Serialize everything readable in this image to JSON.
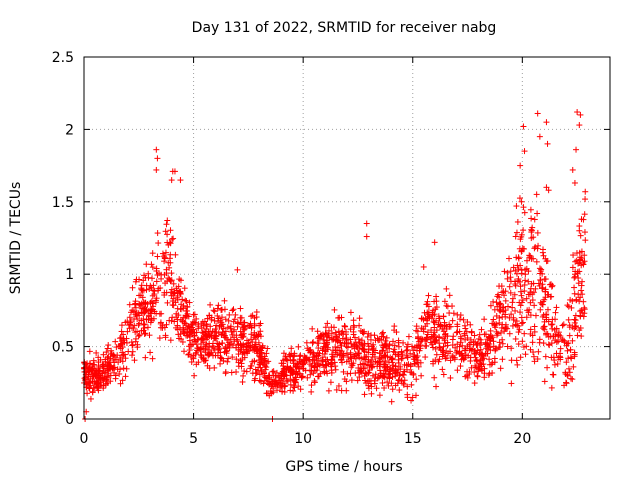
{
  "chart_data": {
    "type": "scatter",
    "title": "Day 131 of 2022, SRMTID for receiver nabg",
    "xlabel": "GPS time / hours",
    "ylabel": "SRMTID / TECUs",
    "xlim": [
      0,
      24
    ],
    "ylim": [
      0,
      2.5
    ],
    "xticks": [
      0,
      5,
      10,
      15,
      20
    ],
    "xtick_labels": [
      "0",
      "5",
      "10",
      "15",
      "20"
    ],
    "yticks": [
      0,
      0.5,
      1,
      1.5,
      2,
      2.5
    ],
    "ytick_labels": [
      "0",
      "0.5",
      "1",
      "1.5",
      "2",
      "2.5"
    ],
    "grid": true,
    "marker": "+",
    "color": "#ff0000",
    "x_range": [
      0.0,
      22.9
    ],
    "envelope": {
      "x": [
        0.0,
        0.5,
        1.0,
        1.5,
        2.0,
        2.5,
        3.0,
        3.5,
        4.0,
        4.5,
        5.0,
        6.0,
        7.0,
        8.0,
        8.5,
        9.0,
        10.0,
        11.0,
        12.0,
        13.0,
        14.0,
        15.0,
        15.5,
        16.0,
        17.0,
        18.0,
        18.5,
        19.0,
        19.5,
        20.0,
        20.5,
        21.0,
        21.5,
        22.0,
        22.5,
        22.9
      ],
      "center": [
        0.3,
        0.3,
        0.32,
        0.4,
        0.55,
        0.75,
        0.8,
        0.9,
        0.95,
        0.7,
        0.55,
        0.55,
        0.55,
        0.45,
        0.25,
        0.3,
        0.38,
        0.45,
        0.5,
        0.4,
        0.4,
        0.35,
        0.65,
        0.6,
        0.55,
        0.45,
        0.5,
        0.7,
        0.8,
        1.0,
        0.9,
        0.8,
        0.6,
        0.4,
        0.85,
        1.1
      ],
      "spread": [
        0.12,
        0.12,
        0.12,
        0.15,
        0.2,
        0.25,
        0.3,
        0.4,
        0.35,
        0.25,
        0.2,
        0.2,
        0.2,
        0.2,
        0.12,
        0.12,
        0.15,
        0.2,
        0.22,
        0.2,
        0.2,
        0.18,
        0.25,
        0.25,
        0.22,
        0.18,
        0.2,
        0.3,
        0.4,
        0.5,
        0.55,
        0.45,
        0.25,
        0.25,
        0.4,
        0.45
      ]
    },
    "highlights": [
      {
        "x": 3.3,
        "y": 1.86
      },
      {
        "x": 3.35,
        "y": 1.8
      },
      {
        "x": 3.3,
        "y": 1.72
      },
      {
        "x": 4.05,
        "y": 1.71
      },
      {
        "x": 4.15,
        "y": 1.71
      },
      {
        "x": 4.0,
        "y": 1.65
      },
      {
        "x": 4.4,
        "y": 1.65
      },
      {
        "x": 12.9,
        "y": 1.35
      },
      {
        "x": 12.9,
        "y": 1.26
      },
      {
        "x": 19.9,
        "y": 1.75
      },
      {
        "x": 20.05,
        "y": 2.02
      },
      {
        "x": 20.1,
        "y": 1.85
      },
      {
        "x": 20.7,
        "y": 2.11
      },
      {
        "x": 20.8,
        "y": 1.95
      },
      {
        "x": 21.1,
        "y": 2.05
      },
      {
        "x": 21.15,
        "y": 1.9
      },
      {
        "x": 21.1,
        "y": 1.6
      },
      {
        "x": 21.2,
        "y": 1.58
      },
      {
        "x": 22.5,
        "y": 2.12
      },
      {
        "x": 22.65,
        "y": 2.1
      },
      {
        "x": 22.6,
        "y": 2.03
      },
      {
        "x": 22.45,
        "y": 1.86
      },
      {
        "x": 22.3,
        "y": 1.72
      },
      {
        "x": 22.4,
        "y": 1.63
      },
      {
        "x": 22.7,
        "y": 1.38
      },
      {
        "x": 22.6,
        "y": 1.3
      },
      {
        "x": 0.05,
        "y": 0.0
      },
      {
        "x": 0.1,
        "y": 0.05
      },
      {
        "x": 8.6,
        "y": 0.0
      },
      {
        "x": 7.0,
        "y": 1.03
      },
      {
        "x": 16.0,
        "y": 1.22
      },
      {
        "x": 15.5,
        "y": 1.05
      }
    ]
  }
}
